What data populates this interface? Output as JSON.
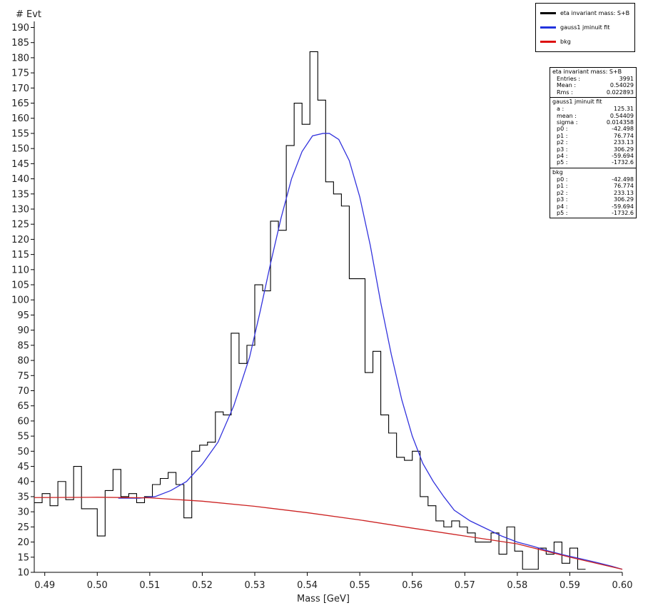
{
  "chart_data": {
    "type": "line",
    "xlabel": "Mass   [GeV]",
    "ylabel": "# Evt",
    "xlim": [
      0.488,
      0.6
    ],
    "ylim": [
      10,
      192
    ],
    "xticks": [
      "0.49",
      "0.50",
      "0.51",
      "0.52",
      "0.53",
      "0.54",
      "0.55",
      "0.56",
      "0.57",
      "0.58",
      "0.59",
      "0.60"
    ],
    "yticks": [
      "10",
      "15",
      "20",
      "25",
      "30",
      "35",
      "40",
      "45",
      "50",
      "55",
      "60",
      "65",
      "70",
      "75",
      "80",
      "85",
      "90",
      "95",
      "100",
      "105",
      "110",
      "115",
      "120",
      "125",
      "130",
      "135",
      "140",
      "145",
      "150",
      "155",
      "160",
      "165",
      "170",
      "175",
      "180",
      "185",
      "190"
    ],
    "histogram": {
      "name": "eta invariant mass: S+B",
      "color": "#000000",
      "bin_start": 0.488,
      "bin_width": 0.0015,
      "values": [
        33,
        36,
        32,
        40,
        34,
        45,
        31,
        31,
        22,
        37,
        44,
        35,
        36,
        33,
        35,
        39,
        41,
        43,
        39,
        28,
        50,
        52,
        53,
        63,
        62,
        89,
        79,
        85,
        105,
        103,
        126,
        123,
        151,
        165,
        158,
        182,
        166,
        139,
        135,
        131,
        107,
        107,
        76,
        83,
        62,
        56,
        48,
        47,
        50,
        35,
        32,
        27,
        25,
        27,
        25,
        23,
        20,
        20,
        23,
        16,
        25,
        17,
        11,
        11,
        18,
        16,
        20,
        13,
        18,
        11
      ]
    },
    "series": [
      {
        "name": "gauss1 jminuit fit",
        "color": "#3333dd",
        "x": [
          0.504,
          0.508,
          0.511,
          0.514,
          0.517,
          0.52,
          0.523,
          0.526,
          0.529,
          0.531,
          0.533,
          0.535,
          0.537,
          0.539,
          0.541,
          0.543,
          0.5442,
          0.546,
          0.548,
          0.55,
          0.552,
          0.554,
          0.556,
          0.558,
          0.56,
          0.562,
          0.564,
          0.566,
          0.568,
          0.571,
          0.574,
          0.577,
          0.58,
          0.583,
          0.586,
          0.589,
          0.592,
          0.595,
          0.598,
          0.6
        ],
        "y": [
          34.5,
          34.5,
          35,
          37,
          40,
          45.7,
          53,
          65,
          81,
          96,
          112,
          127,
          140,
          149,
          154.2,
          155,
          155,
          153,
          146,
          134,
          118,
          99,
          82,
          67,
          55,
          46,
          40,
          35,
          30.5,
          27,
          24.5,
          22,
          20,
          18.6,
          17,
          15.7,
          14.5,
          13.3,
          12,
          11
        ]
      },
      {
        "name": "bkg",
        "color": "#cc2222",
        "x": [
          0.488,
          0.5,
          0.51,
          0.52,
          0.53,
          0.54,
          0.55,
          0.56,
          0.57,
          0.58,
          0.59,
          0.6
        ],
        "y": [
          34.7,
          34.8,
          34.6,
          33.5,
          31.8,
          29.7,
          27.3,
          24.6,
          22.0,
          19.4,
          15.0,
          11.0
        ]
      }
    ]
  },
  "legend": {
    "items": [
      {
        "label": "eta invariant mass: S+B",
        "color": "#000000"
      },
      {
        "label": "gauss1 jminuit fit",
        "color": "#2233dd"
      },
      {
        "label": "bkg",
        "color": "#dd1111"
      }
    ]
  },
  "stats": {
    "sections": [
      {
        "title": "eta invariant mass: S+B",
        "rows": [
          [
            "Entries :",
            "3991"
          ],
          [
            "Mean :",
            "0.54029"
          ],
          [
            "Rms :",
            "0.022893"
          ]
        ]
      },
      {
        "title": "gauss1 jminuit fit",
        "rows": [
          [
            "a :",
            "125.31"
          ],
          [
            "mean :",
            "0.54409"
          ],
          [
            "sigma :",
            "0.014358"
          ],
          [
            "p0 :",
            "-42.498"
          ],
          [
            "p1 :",
            "76.774"
          ],
          [
            "p2 :",
            "233.13"
          ],
          [
            "p3 :",
            "306.29"
          ],
          [
            "p4 :",
            "-59.694"
          ],
          [
            "p5 :",
            "-1732.6"
          ]
        ]
      },
      {
        "title": "bkg",
        "rows": [
          [
            "p0 :",
            "-42.498"
          ],
          [
            "p1 :",
            "76.774"
          ],
          [
            "p2 :",
            "233.13"
          ],
          [
            "p3 :",
            "306.29"
          ],
          [
            "p4 :",
            "-59.694"
          ],
          [
            "p5 :",
            "-1732.6"
          ]
        ]
      }
    ]
  }
}
